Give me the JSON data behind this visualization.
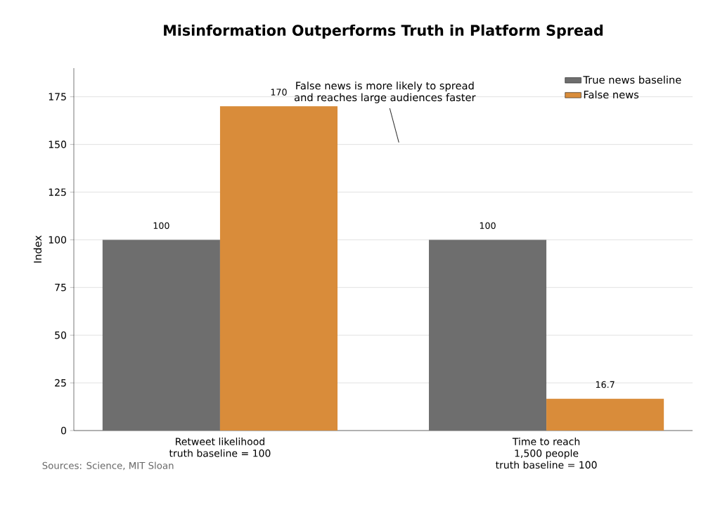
{
  "chart_data": {
    "type": "bar",
    "title": "Misinformation Outperforms Truth in Platform Spread",
    "categories": [
      "Retweet likelihood\ntruth baseline = 100",
      "Time to reach\n1,500 people\ntruth baseline = 100"
    ],
    "series": [
      {
        "name": "True news baseline",
        "color": "#6e6e6e",
        "values": [
          100,
          100
        ]
      },
      {
        "name": "False news",
        "color": "#d98c3a",
        "values": [
          170,
          16.7
        ]
      }
    ],
    "ylabel": "Index",
    "ylim": [
      0,
      190
    ],
    "yticks": [
      0,
      25,
      50,
      75,
      100,
      125,
      150,
      175
    ],
    "grid": "y",
    "legend": "top right",
    "data_labels": true,
    "annotations": [
      "False news is more likely to spread\nand reaches large audiences faster",
      "Sources: Science, MIT Sloan"
    ]
  }
}
